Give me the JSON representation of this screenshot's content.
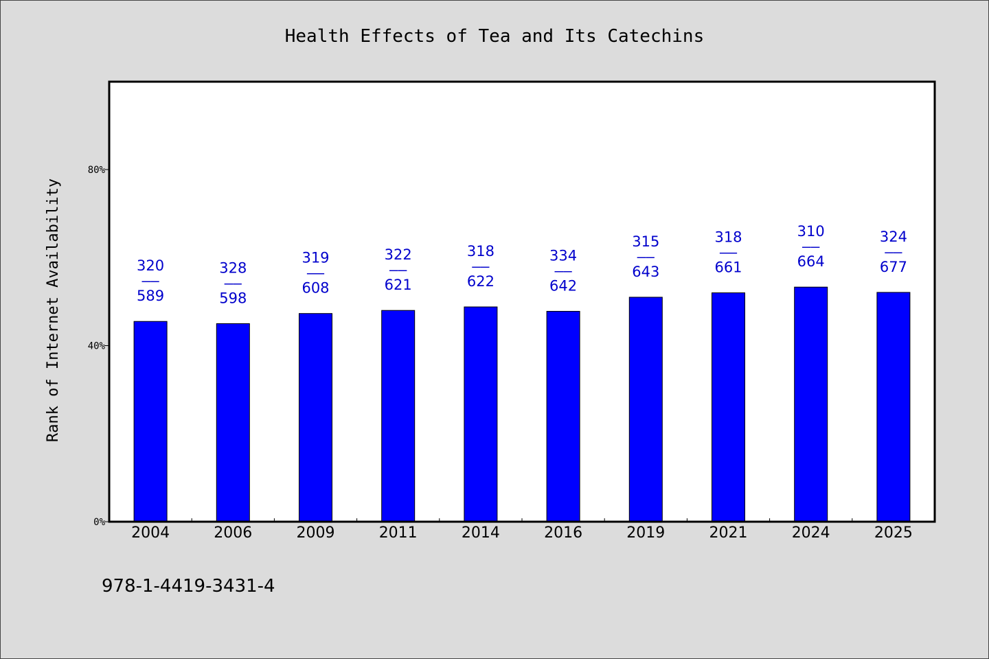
{
  "chart_data": {
    "type": "bar",
    "title": "Health Effects of Tea and Its Catechins",
    "ylabel": "Rank of Internet Availability",
    "xlabel": "",
    "categories": [
      "2004",
      "2006",
      "2009",
      "2011",
      "2014",
      "2016",
      "2019",
      "2021",
      "2024",
      "2025"
    ],
    "values": [
      45.5,
      45.0,
      47.3,
      48.0,
      48.8,
      47.8,
      51.0,
      52.0,
      53.3,
      52.1
    ],
    "data_labels": [
      {
        "top": "320",
        "sep": "——",
        "bottom": "589"
      },
      {
        "top": "328",
        "sep": "——",
        "bottom": "598"
      },
      {
        "top": "319",
        "sep": "——",
        "bottom": "608"
      },
      {
        "top": "322",
        "sep": "——",
        "bottom": "621"
      },
      {
        "top": "318",
        "sep": "——",
        "bottom": "622"
      },
      {
        "top": "334",
        "sep": "——",
        "bottom": "642"
      },
      {
        "top": "315",
        "sep": "——",
        "bottom": "643"
      },
      {
        "top": "318",
        "sep": "——",
        "bottom": "661"
      },
      {
        "top": "310",
        "sep": "——",
        "bottom": "664"
      },
      {
        "top": "324",
        "sep": "——",
        "bottom": "677"
      }
    ],
    "ylim": [
      0,
      100
    ],
    "yticks": [
      {
        "value": 0,
        "label": "0%"
      },
      {
        "value": 40,
        "label": "40%"
      },
      {
        "value": 80,
        "label": "80%"
      }
    ],
    "grid": false,
    "legend": "none",
    "colors": {
      "bar": "#0000ff",
      "label": "#0000cc",
      "background": "#dcdcdc",
      "plot_bg": "#ffffff"
    }
  },
  "footer": {
    "isbn": "978-1-4419-3431-4"
  }
}
